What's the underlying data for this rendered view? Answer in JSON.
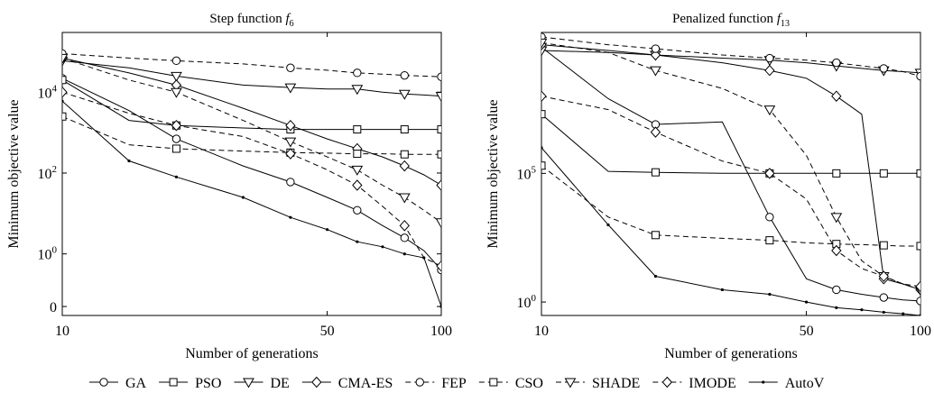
{
  "figure": {
    "legend_position": "bottom",
    "legend": [
      {
        "label": "GA",
        "marker": "circle",
        "dash": "solid"
      },
      {
        "label": "PSO",
        "marker": "square",
        "dash": "solid"
      },
      {
        "label": "DE",
        "marker": "triangle-down",
        "dash": "solid"
      },
      {
        "label": "CMA-ES",
        "marker": "diamond",
        "dash": "solid"
      },
      {
        "label": "FEP",
        "marker": "circle",
        "dash": "dashed"
      },
      {
        "label": "CSO",
        "marker": "square",
        "dash": "dashed"
      },
      {
        "label": "SHADE",
        "marker": "triangle-down",
        "dash": "dashed"
      },
      {
        "label": "IMODE",
        "marker": "diamond",
        "dash": "dashed"
      },
      {
        "label": "AutoV",
        "marker": "dot",
        "dash": "solid"
      }
    ]
  },
  "chart_data": [
    {
      "type": "line",
      "title": "Step function",
      "title_symbol": "f",
      "title_subscript": "6",
      "xlabel": "Number of generations",
      "ylabel": "Minimum objective value",
      "x_scale": "log",
      "y_scale": "log",
      "xlim": [
        10,
        100
      ],
      "ylim": [
        0.03,
        300000
      ],
      "grid": false,
      "x_ticks": [
        10,
        50,
        100
      ],
      "x_tick_labels": [
        "10",
        "50",
        "100"
      ],
      "y_ticks": [
        {
          "value": 10000,
          "base": "10",
          "exp": "4"
        },
        {
          "value": 100,
          "base": "10",
          "exp": "2"
        },
        {
          "value": 1,
          "base": "10",
          "exp": "0"
        },
        {
          "value": 0.05,
          "label": "0"
        }
      ],
      "x": [
        10,
        15,
        20,
        30,
        40,
        50,
        60,
        70,
        80,
        90,
        100
      ],
      "series": [
        {
          "name": "GA",
          "values": [
            22000,
            3500,
            700,
            150,
            60,
            25,
            12,
            5,
            2.5,
            1.2,
            0.4
          ],
          "markers": [
            10,
            20,
            40,
            60,
            80,
            100
          ],
          "style": "solid-circle"
        },
        {
          "name": "PSO",
          "values": [
            20000,
            2000,
            1500,
            1300,
            1200,
            1200,
            1200,
            1200,
            1200,
            1200,
            1200
          ],
          "markers": [
            10,
            20,
            40,
            60,
            80,
            100
          ],
          "style": "solid-square"
        },
        {
          "name": "DE",
          "values": [
            60000,
            40000,
            25000,
            15000,
            13000,
            12000,
            12000,
            10000,
            9000,
            8500,
            8000
          ],
          "markers": [
            10,
            20,
            40,
            60,
            80,
            100
          ],
          "style": "solid-triangle"
        },
        {
          "name": "CMA-ES",
          "values": [
            70000,
            30000,
            15000,
            4000,
            1500,
            700,
            400,
            250,
            150,
            90,
            50
          ],
          "markers": [
            10,
            20,
            40,
            60,
            80,
            100
          ],
          "style": "solid-diamond"
        },
        {
          "name": "FEP",
          "values": [
            90000,
            70000,
            60000,
            50000,
            40000,
            35000,
            30000,
            28000,
            26000,
            25000,
            24000
          ],
          "markers": [
            10,
            20,
            40,
            60,
            80,
            100
          ],
          "style": "dashed-circle"
        },
        {
          "name": "CSO",
          "values": [
            2500,
            500,
            400,
            350,
            320,
            310,
            300,
            300,
            290,
            290,
            290
          ],
          "markers": [
            10,
            20,
            40,
            60,
            80,
            100
          ],
          "style": "dashed-square"
        },
        {
          "name": "SHADE",
          "values": [
            70000,
            20000,
            10000,
            2000,
            600,
            250,
            120,
            50,
            25,
            12,
            6
          ],
          "markers": [
            10,
            20,
            40,
            60,
            80,
            100
          ],
          "style": "dashed-triangle"
        },
        {
          "name": "IMODE",
          "values": [
            10000,
            3000,
            1500,
            800,
            300,
            120,
            50,
            15,
            5,
            0.8,
            0.5
          ],
          "markers": [
            10,
            20,
            40,
            60,
            80,
            100
          ],
          "style": "dashed-diamond"
        },
        {
          "name": "AutoV",
          "values": [
            6000,
            200,
            80,
            25,
            8,
            4,
            2,
            1.5,
            1,
            0.8,
            0.05
          ],
          "markers": [
            10,
            15,
            20,
            30,
            40,
            50,
            60,
            70,
            80,
            90,
            100
          ],
          "style": "solid-dot"
        }
      ]
    },
    {
      "type": "line",
      "title": "Penalized function",
      "title_symbol": "f",
      "title_subscript": "13",
      "xlabel": "Number of generations",
      "ylabel": "Minimum objective value",
      "x_scale": "log",
      "y_scale": "log",
      "xlim": [
        10,
        100
      ],
      "ylim": [
        0.3,
        30000000000
      ],
      "grid": false,
      "x_ticks": [
        10,
        50,
        100
      ],
      "x_tick_labels": [
        "10",
        "50",
        "100"
      ],
      "y_ticks": [
        {
          "value": 100000,
          "base": "10",
          "exp": "5"
        },
        {
          "value": 1,
          "base": "10",
          "exp": "0"
        }
      ],
      "x": [
        10,
        15,
        20,
        30,
        40,
        50,
        60,
        70,
        80,
        90,
        100
      ],
      "series": [
        {
          "name": "GA",
          "values": [
            8000000000,
            80000000,
            8000000,
            10000000,
            2000,
            8,
            3,
            2,
            1.5,
            1.2,
            1.1
          ],
          "markers": [
            10,
            20,
            40,
            60,
            80,
            100
          ],
          "style": "solid-circle"
        },
        {
          "name": "PSO",
          "values": [
            20000000,
            120000,
            110000,
            100000,
            100000,
            100000,
            100000,
            100000,
            100000,
            100000,
            100000
          ],
          "markers": [
            10,
            20,
            40,
            60,
            80,
            100
          ],
          "style": "solid-square"
        },
        {
          "name": "DE",
          "values": [
            6000000000,
            5000000000,
            4000000000,
            3000000000,
            2500000000,
            2000000000,
            1500000000,
            1200000000,
            1000000000,
            900000000,
            800000000
          ],
          "markers": [
            10,
            20,
            40,
            60,
            80,
            100
          ],
          "style": "solid-triangle"
        },
        {
          "name": "CMA-ES",
          "values": [
            10000000000,
            6000000000,
            4000000000,
            2000000000,
            1000000000,
            500000000,
            100000000,
            20000000,
            8,
            5,
            3
          ],
          "markers": [
            10,
            20,
            40,
            60,
            80,
            100
          ],
          "style": "solid-diamond"
        },
        {
          "name": "FEP",
          "values": [
            20000000000,
            10000000000,
            7000000000,
            4000000000,
            3000000000,
            2500000000,
            2000000000,
            1500000000,
            1200000000,
            900000000,
            600000000
          ],
          "markers": [
            10,
            20,
            40,
            60,
            80,
            100
          ],
          "style": "dashed-circle"
        },
        {
          "name": "CSO",
          "values": [
            200000,
            2000,
            400,
            300,
            250,
            200,
            180,
            170,
            160,
            150,
            150
          ],
          "markers": [
            10,
            20,
            40,
            60,
            80,
            100
          ],
          "style": "dashed-square"
        },
        {
          "name": "SHADE",
          "values": [
            12000000000,
            5000000000,
            1000000000,
            200000000,
            30000000,
            500000,
            2000,
            40,
            10,
            5,
            3
          ],
          "markers": [
            10,
            20,
            40,
            60,
            80,
            100
          ],
          "style": "dashed-triangle"
        },
        {
          "name": "IMODE",
          "values": [
            100000000,
            30000000,
            4000000,
            300000,
            100000,
            10000,
            100,
            20,
            10,
            5,
            4
          ],
          "markers": [
            10,
            20,
            40,
            60,
            80,
            100
          ],
          "style": "dashed-diamond"
        },
        {
          "name": "AutoV",
          "values": [
            1000000,
            1000,
            10,
            3,
            2,
            1,
            0.6,
            0.5,
            0.4,
            0.35,
            0.3
          ],
          "markers": [
            10,
            15,
            20,
            30,
            40,
            50,
            60,
            70,
            80,
            90,
            100
          ],
          "style": "solid-dot"
        }
      ]
    }
  ]
}
